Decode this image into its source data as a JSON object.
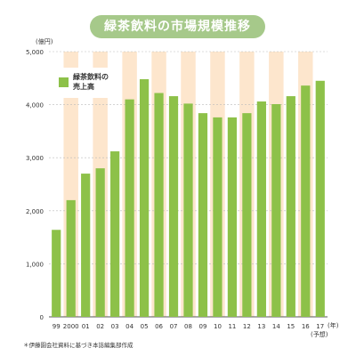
{
  "chart_data": {
    "type": "bar",
    "title": "緑茶飲料の市場規模推移",
    "ylabel": "(億円)",
    "xlabel": "(年)",
    "ylim": [
      0,
      5000
    ],
    "yticks": [
      "0",
      "1,000",
      "2,000",
      "3,000",
      "4,000",
      "5,000"
    ],
    "categories": [
      "99",
      "2000",
      "01",
      "02",
      "03",
      "04",
      "05",
      "06",
      "07",
      "08",
      "09",
      "10",
      "11",
      "12",
      "13",
      "14",
      "15",
      "16",
      "17"
    ],
    "series": [
      {
        "name": "緑茶飲料の売上高",
        "values": [
          1640,
          2200,
          2700,
          2800,
          3120,
          4100,
          4480,
          4220,
          4160,
          4020,
          3840,
          3760,
          3760,
          3840,
          4060,
          4010,
          4160,
          4360,
          4450
        ]
      }
    ],
    "forecast_note": "(予想)",
    "legend_position": "top-left",
    "bar_color": "#8dc149",
    "stripe_color": "#fde6cd",
    "source_note": "＊伊藤園会社資料に基づき本誌編集部作成"
  }
}
